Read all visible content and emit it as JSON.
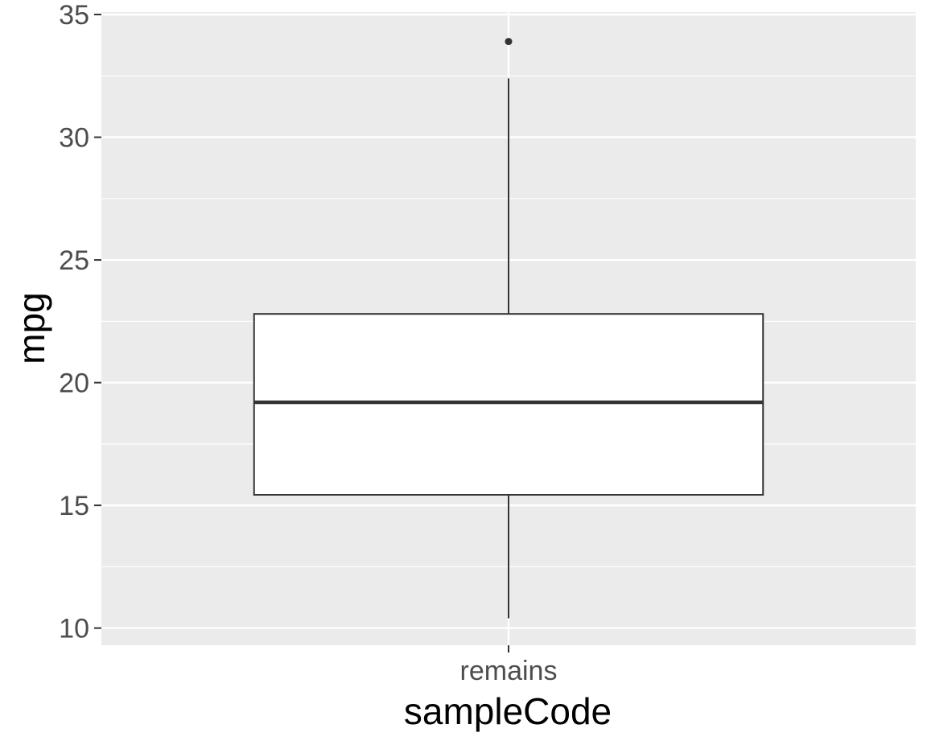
{
  "chart_data": {
    "type": "boxplot",
    "xlabel": "sampleCode",
    "ylabel": "mpg",
    "categories": [
      "remains"
    ],
    "ylim": [
      9.3,
      35.1
    ],
    "yticks": [
      10,
      15,
      20,
      25,
      30,
      35
    ],
    "grid": true,
    "boxes": [
      {
        "category": "remains",
        "whisker_low": 10.4,
        "q1": 15.43,
        "median": 19.2,
        "q3": 22.8,
        "whisker_high": 32.4,
        "outliers": [
          33.9
        ]
      }
    ],
    "colors": {
      "panel_background": "#ebebeb",
      "grid": "#ffffff",
      "box_fill": "#ffffff",
      "box_line": "#333333",
      "tick_text": "#4d4d4d"
    }
  }
}
